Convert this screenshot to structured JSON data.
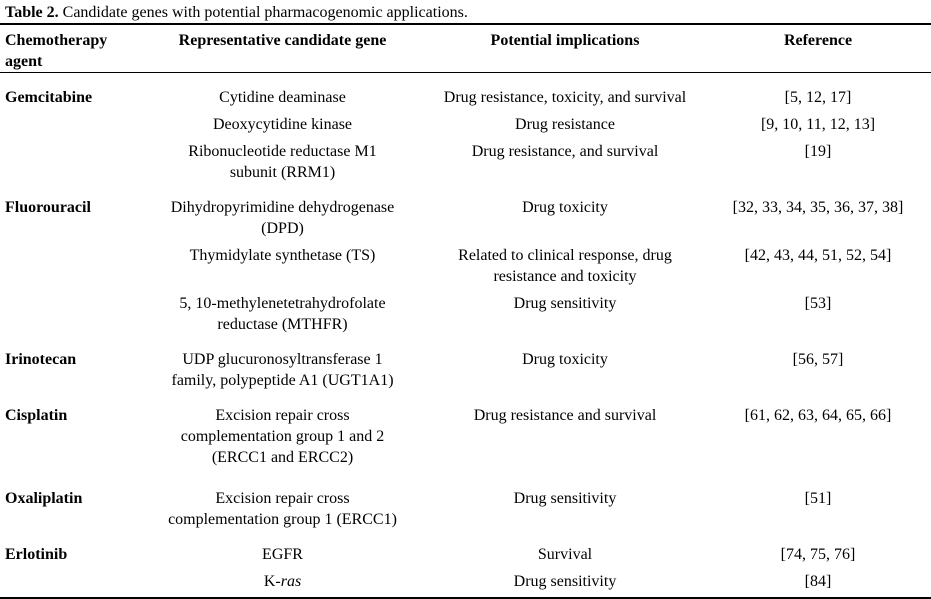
{
  "caption": {
    "label": "Table 2.",
    "text": " Candidate genes with potential pharmacogenomic applications."
  },
  "colors": {
    "text": "#000000",
    "background": "#ffffff",
    "rule": "#000000"
  },
  "table": {
    "headers": [
      "Chemotherapy\nagent",
      "Representative candidate gene",
      "Potential implications",
      "Reference"
    ],
    "rows": [
      {
        "agent": "Gemcitabine",
        "group_start": true,
        "gene": "Cytidine deaminase",
        "implications": "Drug resistance, toxicity, and survival",
        "reference": "[5, 12, 17]"
      },
      {
        "agent": "",
        "gene": "Deoxycytidine kinase",
        "implications": "Drug resistance",
        "reference": "[9, 10, 11, 12, 13]"
      },
      {
        "agent": "",
        "gene": "Ribonucleotide reductase M1\nsubunit (RRM1)",
        "implications": "Drug resistance, and survival",
        "reference": "[19]"
      },
      {
        "agent": "Fluorouracil",
        "group_start": true,
        "gene": "Dihydropyrimidine dehydrogenase\n(DPD)",
        "implications": "Drug toxicity",
        "reference": "[32, 33, 34, 35, 36, 37, 38]"
      },
      {
        "agent": "",
        "gene": "Thymidylate synthetase (TS)",
        "implications": "Related to clinical response, drug\nresistance and toxicity",
        "reference": "[42, 43, 44, 51, 52, 54]"
      },
      {
        "agent": "",
        "gene": "5, 10-methylenetetrahydrofolate\nreductase (MTHFR)",
        "implications": "Drug sensitivity",
        "reference": "[53]"
      },
      {
        "agent": "Irinotecan",
        "group_start": true,
        "gene": "UDP glucuronosyltransferase 1\nfamily, polypeptide A1 (UGT1A1)",
        "implications": "Drug toxicity",
        "reference": "[56, 57]"
      },
      {
        "agent": "Cisplatin",
        "group_start": true,
        "gene": "Excision repair cross\ncomplementation group 1 and 2\n(ERCC1 and ERCC2)",
        "implications": "Drug resistance and survival",
        "reference": "[61, 62, 63, 64, 65, 66]"
      },
      {
        "agent": "Oxaliplatin",
        "group_start": true,
        "extra_gap": true,
        "gene": "Excision repair cross\ncomplementation group 1 (ERCC1)",
        "implications": "Drug sensitivity",
        "reference": "[51]"
      },
      {
        "agent": "Erlotinib",
        "group_start": true,
        "gene": "EGFR",
        "implications": "Survival",
        "reference": "[74, 75, 76]"
      },
      {
        "agent": "",
        "gene": [
          {
            "text": "K-",
            "italic": false
          },
          {
            "text": "ras",
            "italic": true
          }
        ],
        "implications": "Drug sensitivity",
        "reference": "[84]"
      }
    ]
  }
}
